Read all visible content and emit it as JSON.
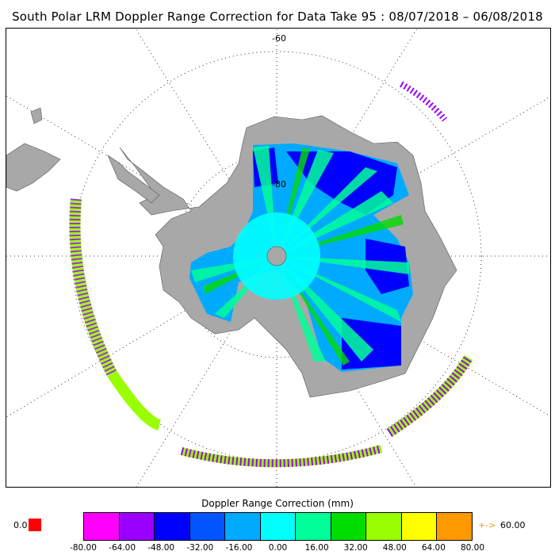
{
  "title": "South Polar LRM Doppler Range Correction for Data Take 95 : 08/07/2018 – 06/08/2018",
  "map": {
    "projection": "south-polar-stereographic",
    "lat_labels": [
      "-60",
      "-80"
    ],
    "land_color": "#a8a8a8",
    "ocean_color": "#ffffff"
  },
  "colorbar": {
    "title": "Doppler Range Correction (mm)",
    "colors": [
      "#ff00ff",
      "#9b00ff",
      "#0000ff",
      "#0055ff",
      "#00aaff",
      "#00ffff",
      "#00ff99",
      "#00dd00",
      "#99ff00",
      "#ffff00",
      "#ff9900"
    ],
    "tick_labels": [
      "-80.00",
      "-64.00",
      "-48.00",
      "-32.00",
      "-16.00",
      "0.00",
      "16.00",
      "32.00",
      "48.00",
      "64.00",
      "80.00"
    ],
    "zero_value_label": "0.0",
    "zero_value_color": "#ff0000",
    "overflow_arrow": "+->",
    "overflow_label": "60.00",
    "overflow_color": "#f39c12"
  }
}
